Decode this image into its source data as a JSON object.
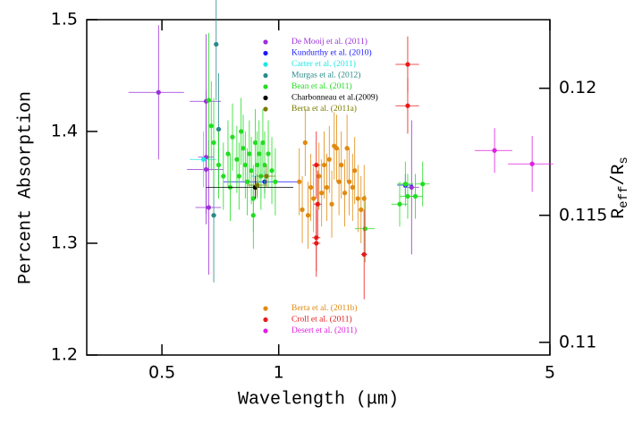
{
  "chart_data": {
    "type": "scatter",
    "xlabel": "Wavelength (μm)",
    "ylabel": "Percent Absorption",
    "y2label_parts": [
      "R",
      "eff",
      "/R",
      "s"
    ],
    "xscale": "log",
    "xlim": [
      0.32,
      5
    ],
    "xticks": [
      0.5,
      1,
      5
    ],
    "ylim": [
      1.2,
      1.5
    ],
    "yticks": [
      1.2,
      1.3,
      1.4,
      1.5
    ],
    "y2lim": [
      0.1095,
      0.1227
    ],
    "y2ticks": [
      0.11,
      0.115,
      0.12
    ],
    "series": [
      {
        "name": "De Mooij et al. (2011)",
        "color": "#9b30d9",
        "x": [
          0.49,
          0.65,
          0.65,
          0.66,
          0.65,
          2.2
        ],
        "values": [
          1.435,
          1.366,
          1.427,
          1.332,
          1.377,
          1.35
        ],
        "errors": [
          0.06,
          0.04,
          0.06,
          0.06,
          0.06,
          0.06
        ],
        "x_errors": [
          0.08,
          0.07,
          0.06,
          0.05,
          0.03,
          0.1
        ]
      },
      {
        "name": "Kundurthy et al. (2010)",
        "color": "#1a1aff",
        "x": [
          0.92,
          2.12
        ],
        "values": [
          1.355,
          1.352
        ],
        "errors": [
          0.01,
          0.01
        ],
        "x_errors": [
          0.2,
          0.1
        ]
      },
      {
        "name": "Carter et al. (2011)",
        "color": "#22e6e6",
        "x": [
          0.64,
          0.9
        ],
        "values": [
          1.375,
          1.36
        ],
        "errors": [
          0.025,
          0.02
        ],
        "x_errors": [
          0.05,
          0.05
        ]
      },
      {
        "name": "Murgas et al. (2012)",
        "color": "#2a8a8a",
        "x": [
          0.69,
          0.7,
          0.68
        ],
        "values": [
          1.478,
          1.402,
          1.325
        ],
        "errors": [
          0.05,
          0.05,
          0.06
        ],
        "x_errors": [
          0.01,
          0.01,
          0.01
        ]
      },
      {
        "name": "Bean et al. (2011)",
        "color": "#22dd22",
        "x": [
          0.66,
          0.67,
          0.68,
          0.7,
          0.72,
          0.74,
          0.75,
          0.76,
          0.78,
          0.79,
          0.8,
          0.81,
          0.82,
          0.83,
          0.84,
          0.85,
          0.86,
          0.87,
          0.88,
          0.89,
          0.9,
          0.91,
          0.92,
          0.94,
          0.96,
          0.98,
          0.86,
          1.67,
          2.05,
          2.12,
          2.15,
          2.25,
          2.35
        ],
        "values": [
          1.428,
          1.405,
          1.39,
          1.37,
          1.36,
          1.38,
          1.35,
          1.395,
          1.375,
          1.36,
          1.4,
          1.385,
          1.37,
          1.355,
          1.38,
          1.365,
          1.34,
          1.39,
          1.37,
          1.38,
          1.36,
          1.39,
          1.37,
          1.38,
          1.365,
          1.355,
          1.325,
          1.313,
          1.335,
          1.353,
          1.342,
          1.342,
          1.353
        ],
        "errors": [
          0.06,
          0.04,
          0.04,
          0.03,
          0.03,
          0.03,
          0.03,
          0.03,
          0.03,
          0.03,
          0.03,
          0.03,
          0.03,
          0.03,
          0.03,
          0.03,
          0.03,
          0.03,
          0.03,
          0.03,
          0.03,
          0.03,
          0.03,
          0.03,
          0.03,
          0.03,
          0.03,
          0.03,
          0.02,
          0.02,
          0.02,
          0.02,
          0.02
        ],
        "x_errors": [
          null,
          null,
          null,
          null,
          null,
          null,
          null,
          null,
          null,
          null,
          null,
          null,
          null,
          null,
          null,
          null,
          null,
          null,
          null,
          null,
          null,
          null,
          null,
          null,
          null,
          null,
          null,
          0.1,
          0.1,
          0.1,
          0.1,
          0.1,
          0.1
        ]
      },
      {
        "name": "Charbonneau et al.(2009)",
        "color": "#000000",
        "x": [
          0.87
        ],
        "values": [
          1.35
        ],
        "errors": [
          0.01
        ],
        "x_errors": [
          0.22
        ]
      },
      {
        "name": "Berta et al. (2011a)",
        "color": "#7a7a00",
        "x": [
          0.93,
          0.88
        ],
        "values": [
          1.36,
          1.352
        ],
        "errors": [
          0.01,
          0.01
        ],
        "x_errors": [
          0.05,
          0.05
        ]
      },
      {
        "name": "Berta et al. (2011b)",
        "color": "#e08a10",
        "x": [
          1.13,
          1.15,
          1.17,
          1.19,
          1.21,
          1.23,
          1.27,
          1.29,
          1.31,
          1.33,
          1.35,
          1.37,
          1.39,
          1.41,
          1.43,
          1.45,
          1.48,
          1.5,
          1.52,
          1.55,
          1.57,
          1.6,
          1.63,
          1.66
        ],
        "values": [
          1.355,
          1.33,
          1.39,
          1.325,
          1.35,
          1.34,
          1.36,
          1.345,
          1.37,
          1.35,
          1.375,
          1.335,
          1.387,
          1.385,
          1.355,
          1.37,
          1.345,
          1.385,
          1.355,
          1.35,
          1.365,
          1.34,
          1.33,
          1.34
        ],
        "errors": [
          0.03,
          0.03,
          0.03,
          0.03,
          0.03,
          0.03,
          0.03,
          0.03,
          0.03,
          0.03,
          0.03,
          0.03,
          0.03,
          0.03,
          0.03,
          0.03,
          0.03,
          0.03,
          0.03,
          0.03,
          0.03,
          0.03,
          0.03,
          0.03
        ]
      },
      {
        "name": "Croll et al. (2011)",
        "color": "#e81a1a",
        "x": [
          1.25,
          1.26,
          1.25,
          1.25,
          1.66,
          2.15,
          2.15
        ],
        "values": [
          1.37,
          1.335,
          1.305,
          1.3,
          1.29,
          1.46,
          1.423
        ],
        "errors": [
          0.03,
          0.03,
          0.03,
          0.03,
          0.04,
          0.025,
          0.025
        ],
        "x_errors": [
          0.03,
          0.03,
          0.03,
          0.03,
          0.03,
          0.15,
          0.15
        ]
      },
      {
        "name": "Desert et al. (2011)",
        "color": "#e020e0",
        "x": [
          3.6,
          4.5
        ],
        "values": [
          1.383,
          1.371
        ],
        "errors": [
          0.02,
          0.025
        ],
        "x_errors": [
          0.4,
          0.6
        ]
      }
    ]
  }
}
